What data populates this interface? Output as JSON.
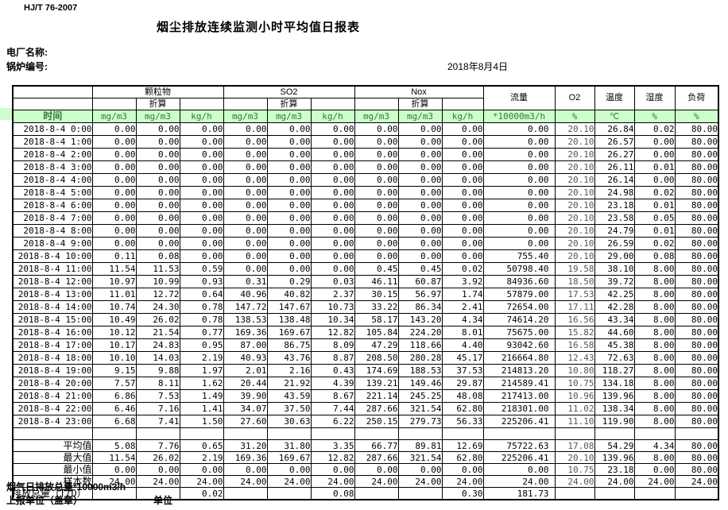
{
  "page": {
    "standard_no": "HJ/T  76-2007",
    "title": "烟尘排放连续监测小时平均值日报表",
    "plant_label": "电厂名称:",
    "boiler_label": "锅炉编号:",
    "report_date": "2018年8月4日"
  },
  "table": {
    "time_header": "时间",
    "conversion_label": "折算",
    "groups": {
      "pm": "颗粒物",
      "so2": "SO2",
      "nox": "Nox",
      "flow": "流量",
      "o2": "O2",
      "temp": "温度",
      "humidity": "湿度",
      "load": "负荷"
    },
    "units": [
      "mg/m3",
      "mg/m3",
      "kg/h",
      "mg/m3",
      "mg/m3",
      "kg/h",
      "mg/m3",
      "mg/m3",
      "kg/h",
      "*10000m3/h",
      "%",
      "℃",
      "%",
      "%"
    ],
    "rows": [
      {
        "time": "2018-8-4  0:00",
        "values": [
          "0.00",
          "0.00",
          "0.00",
          "0.00",
          "0.00",
          "0.00",
          "0.00",
          "0.00",
          "0.00",
          "0.00",
          "20.10",
          "26.84",
          "0.02",
          "80.00"
        ]
      },
      {
        "time": "2018-8-4  1:00",
        "values": [
          "0.00",
          "0.00",
          "0.00",
          "0.00",
          "0.00",
          "0.00",
          "0.00",
          "0.00",
          "0.00",
          "0.00",
          "20.10",
          "26.57",
          "0.00",
          "80.00"
        ]
      },
      {
        "time": "2018-8-4  2:00",
        "values": [
          "0.00",
          "0.00",
          "0.00",
          "0.00",
          "0.00",
          "0.00",
          "0.00",
          "0.00",
          "0.00",
          "0.00",
          "20.10",
          "26.27",
          "0.00",
          "80.00"
        ]
      },
      {
        "time": "2018-8-4  3:00",
        "values": [
          "0.00",
          "0.00",
          "0.00",
          "0.00",
          "0.00",
          "0.00",
          "0.00",
          "0.00",
          "0.00",
          "0.00",
          "20.10",
          "26.11",
          "0.01",
          "80.00"
        ]
      },
      {
        "time": "2018-8-4  4:00",
        "values": [
          "0.00",
          "0.00",
          "0.00",
          "0.00",
          "0.00",
          "0.00",
          "0.00",
          "0.00",
          "0.00",
          "0.00",
          "20.10",
          "26.14",
          "0.00",
          "80.00"
        ]
      },
      {
        "time": "2018-8-4  5:00",
        "values": [
          "0.00",
          "0.00",
          "0.00",
          "0.00",
          "0.00",
          "0.00",
          "0.00",
          "0.00",
          "0.00",
          "0.00",
          "20.10",
          "24.98",
          "0.02",
          "80.00"
        ]
      },
      {
        "time": "2018-8-4  6:00",
        "values": [
          "0.00",
          "0.00",
          "0.00",
          "0.00",
          "0.00",
          "0.00",
          "0.00",
          "0.00",
          "0.00",
          "0.00",
          "20.10",
          "23.18",
          "0.01",
          "80.00"
        ]
      },
      {
        "time": "2018-8-4  7:00",
        "values": [
          "0.00",
          "0.00",
          "0.00",
          "0.00",
          "0.00",
          "0.00",
          "0.00",
          "0.00",
          "0.00",
          "0.00",
          "20.10",
          "23.58",
          "0.05",
          "80.00"
        ]
      },
      {
        "time": "2018-8-4  8:00",
        "values": [
          "0.00",
          "0.00",
          "0.00",
          "0.00",
          "0.00",
          "0.00",
          "0.00",
          "0.00",
          "0.00",
          "0.00",
          "20.10",
          "24.79",
          "0.01",
          "80.00"
        ]
      },
      {
        "time": "2018-8-4  9:00",
        "values": [
          "0.00",
          "0.00",
          "0.00",
          "0.00",
          "0.00",
          "0.00",
          "0.00",
          "0.00",
          "0.00",
          "0.00",
          "20.10",
          "26.59",
          "0.02",
          "80.00"
        ]
      },
      {
        "time": "2018-8-4 10:00",
        "values": [
          "0.11",
          "0.08",
          "0.00",
          "0.00",
          "0.00",
          "0.00",
          "0.00",
          "0.00",
          "0.00",
          "755.40",
          "20.10",
          "29.00",
          "0.08",
          "80.00"
        ]
      },
      {
        "time": "2018-8-4 11:00",
        "values": [
          "11.54",
          "11.53",
          "0.59",
          "0.00",
          "0.00",
          "0.00",
          "0.45",
          "0.45",
          "0.02",
          "50798.40",
          "19.58",
          "38.10",
          "8.00",
          "80.00"
        ]
      },
      {
        "time": "2018-8-4 12:00",
        "values": [
          "10.97",
          "10.99",
          "0.93",
          "0.31",
          "0.29",
          "0.03",
          "46.11",
          "60.87",
          "3.92",
          "84936.60",
          "18.50",
          "39.72",
          "8.00",
          "80.00"
        ]
      },
      {
        "time": "2018-8-4 13:00",
        "values": [
          "11.01",
          "12.72",
          "0.64",
          "40.96",
          "40.82",
          "2.37",
          "30.15",
          "56.97",
          "1.74",
          "57879.00",
          "17.53",
          "42.25",
          "8.00",
          "80.00"
        ]
      },
      {
        "time": "2018-8-4 14:00",
        "values": [
          "10.74",
          "24.30",
          "0.78",
          "147.72",
          "147.67",
          "10.73",
          "33.22",
          "86.34",
          "2.41",
          "72654.00",
          "17.11",
          "42.28",
          "8.00",
          "80.00"
        ]
      },
      {
        "time": "2018-8-4 15:00",
        "values": [
          "10.49",
          "26.02",
          "0.78",
          "138.53",
          "138.48",
          "10.34",
          "58.17",
          "143.20",
          "4.34",
          "74614.20",
          "16.56",
          "43.34",
          "8.00",
          "80.00"
        ]
      },
      {
        "time": "2018-8-4 16:00",
        "values": [
          "10.12",
          "21.54",
          "0.77",
          "169.36",
          "169.67",
          "12.82",
          "105.84",
          "224.20",
          "8.01",
          "75675.00",
          "15.82",
          "44.60",
          "8.00",
          "80.00"
        ]
      },
      {
        "time": "2018-8-4 17:00",
        "values": [
          "10.17",
          "24.83",
          "0.95",
          "87.00",
          "86.75",
          "8.09",
          "47.29",
          "118.66",
          "4.40",
          "93042.60",
          "16.58",
          "45.38",
          "8.00",
          "80.00"
        ]
      },
      {
        "time": "2018-8-4 18:00",
        "values": [
          "10.10",
          "14.03",
          "2.19",
          "40.93",
          "43.76",
          "8.87",
          "208.50",
          "280.28",
          "45.17",
          "216664.80",
          "12.43",
          "72.63",
          "8.00",
          "80.00"
        ]
      },
      {
        "time": "2018-8-4 19:00",
        "values": [
          "9.15",
          "9.88",
          "1.97",
          "2.01",
          "2.16",
          "0.43",
          "174.69",
          "188.53",
          "37.53",
          "214813.20",
          "10.80",
          "118.27",
          "8.00",
          "80.00"
        ]
      },
      {
        "time": "2018-8-4 20:00",
        "values": [
          "7.57",
          "8.11",
          "1.62",
          "20.44",
          "21.92",
          "4.39",
          "139.21",
          "149.46",
          "29.87",
          "214589.41",
          "10.75",
          "134.18",
          "8.00",
          "80.00"
        ]
      },
      {
        "time": "2018-8-4 21:00",
        "values": [
          "6.86",
          "7.53",
          "1.49",
          "39.90",
          "43.59",
          "8.67",
          "221.14",
          "245.25",
          "48.08",
          "217413.00",
          "10.96",
          "139.96",
          "8.00",
          "80.00"
        ]
      },
      {
        "time": "2018-8-4 22:00",
        "values": [
          "6.46",
          "7.16",
          "1.41",
          "34.07",
          "37.50",
          "7.44",
          "287.66",
          "321.54",
          "62.80",
          "218301.00",
          "11.02",
          "138.34",
          "8.00",
          "80.00"
        ]
      },
      {
        "time": "2018-8-4 23:00",
        "values": [
          "6.68",
          "7.41",
          "1.50",
          "27.60",
          "30.63",
          "6.22",
          "250.15",
          "279.73",
          "56.33",
          "225206.41",
          "11.10",
          "119.90",
          "8.00",
          "80.00"
        ]
      }
    ],
    "summary": [
      {
        "label": "平均值",
        "values": [
          "5.08",
          "7.76",
          "0.65",
          "31.20",
          "31.80",
          "3.35",
          "66.77",
          "89.81",
          "12.69",
          "75722.63",
          "17.08",
          "54.29",
          "4.34",
          "80.00"
        ]
      },
      {
        "label": "最大值",
        "values": [
          "11.54",
          "26.02",
          "2.19",
          "169.36",
          "169.67",
          "12.82",
          "287.66",
          "321.54",
          "62.80",
          "225206.41",
          "20.10",
          "139.96",
          "8.00",
          "80.00"
        ]
      },
      {
        "label": "最小值",
        "values": [
          "0.00",
          "0.00",
          "0.00",
          "0.00",
          "0.00",
          "0.00",
          "0.00",
          "0.00",
          "0.00",
          "0.00",
          "10.75",
          "23.18",
          "0.00",
          "80.00"
        ]
      },
      {
        "label": "样本数",
        "values": [
          "24.00",
          "24.00",
          "24.00",
          "24.00",
          "24.00",
          "24.00",
          "24.00",
          "24.00",
          "24.00",
          "24.00",
          "24.00",
          "24.00",
          "24.00",
          "24.00"
        ]
      }
    ],
    "daily_total": {
      "label": "日排放总量（T/D）",
      "values": [
        "",
        "",
        "0.02",
        "",
        "",
        "0.08",
        "",
        "",
        "0.30",
        "181.73",
        "",
        "",
        "",
        ""
      ]
    }
  },
  "footer": {
    "flue_total_label": "烟气日排放总量*10000m3/h",
    "report_unit_label": "上报单位（盖章）",
    "unit_label": "单位"
  }
}
